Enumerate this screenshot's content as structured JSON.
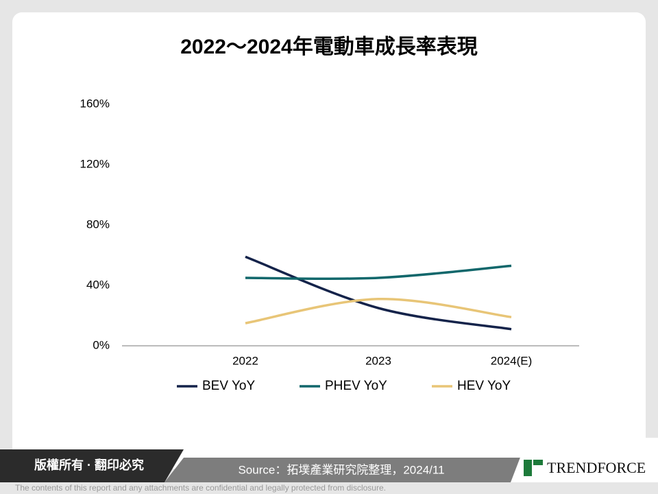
{
  "chart_data": {
    "type": "line",
    "title": "2022～2024年電動車成長率表現",
    "categories": [
      "2022",
      "2023",
      "2024(E)"
    ],
    "series": [
      {
        "name": "BEV YoY",
        "color": "#14234a",
        "values": [
          59,
          25,
          11
        ]
      },
      {
        "name": "PHEV YoY",
        "color": "#11676b",
        "values": [
          45,
          45,
          53
        ]
      },
      {
        "name": "HEV YoY",
        "color": "#e8c577",
        "values": [
          15,
          31,
          19
        ]
      }
    ],
    "ylim": [
      0,
      160
    ],
    "yticks": [
      {
        "value": 0,
        "label": "0%"
      },
      {
        "value": 40,
        "label": "40%"
      },
      {
        "value": 80,
        "label": "80%"
      },
      {
        "value": 120,
        "label": "120%"
      },
      {
        "value": 160,
        "label": "160%"
      }
    ],
    "grid": false,
    "legend": "bottom"
  },
  "footer": {
    "rights": "版權所有 · 翻印必究",
    "source": "Source：拓墣產業研究院整理，2024/11",
    "brand": "TRENDFORCE",
    "disclaimer": "The contents of this report and any attachments are confidential and legally protected from disclosure."
  }
}
